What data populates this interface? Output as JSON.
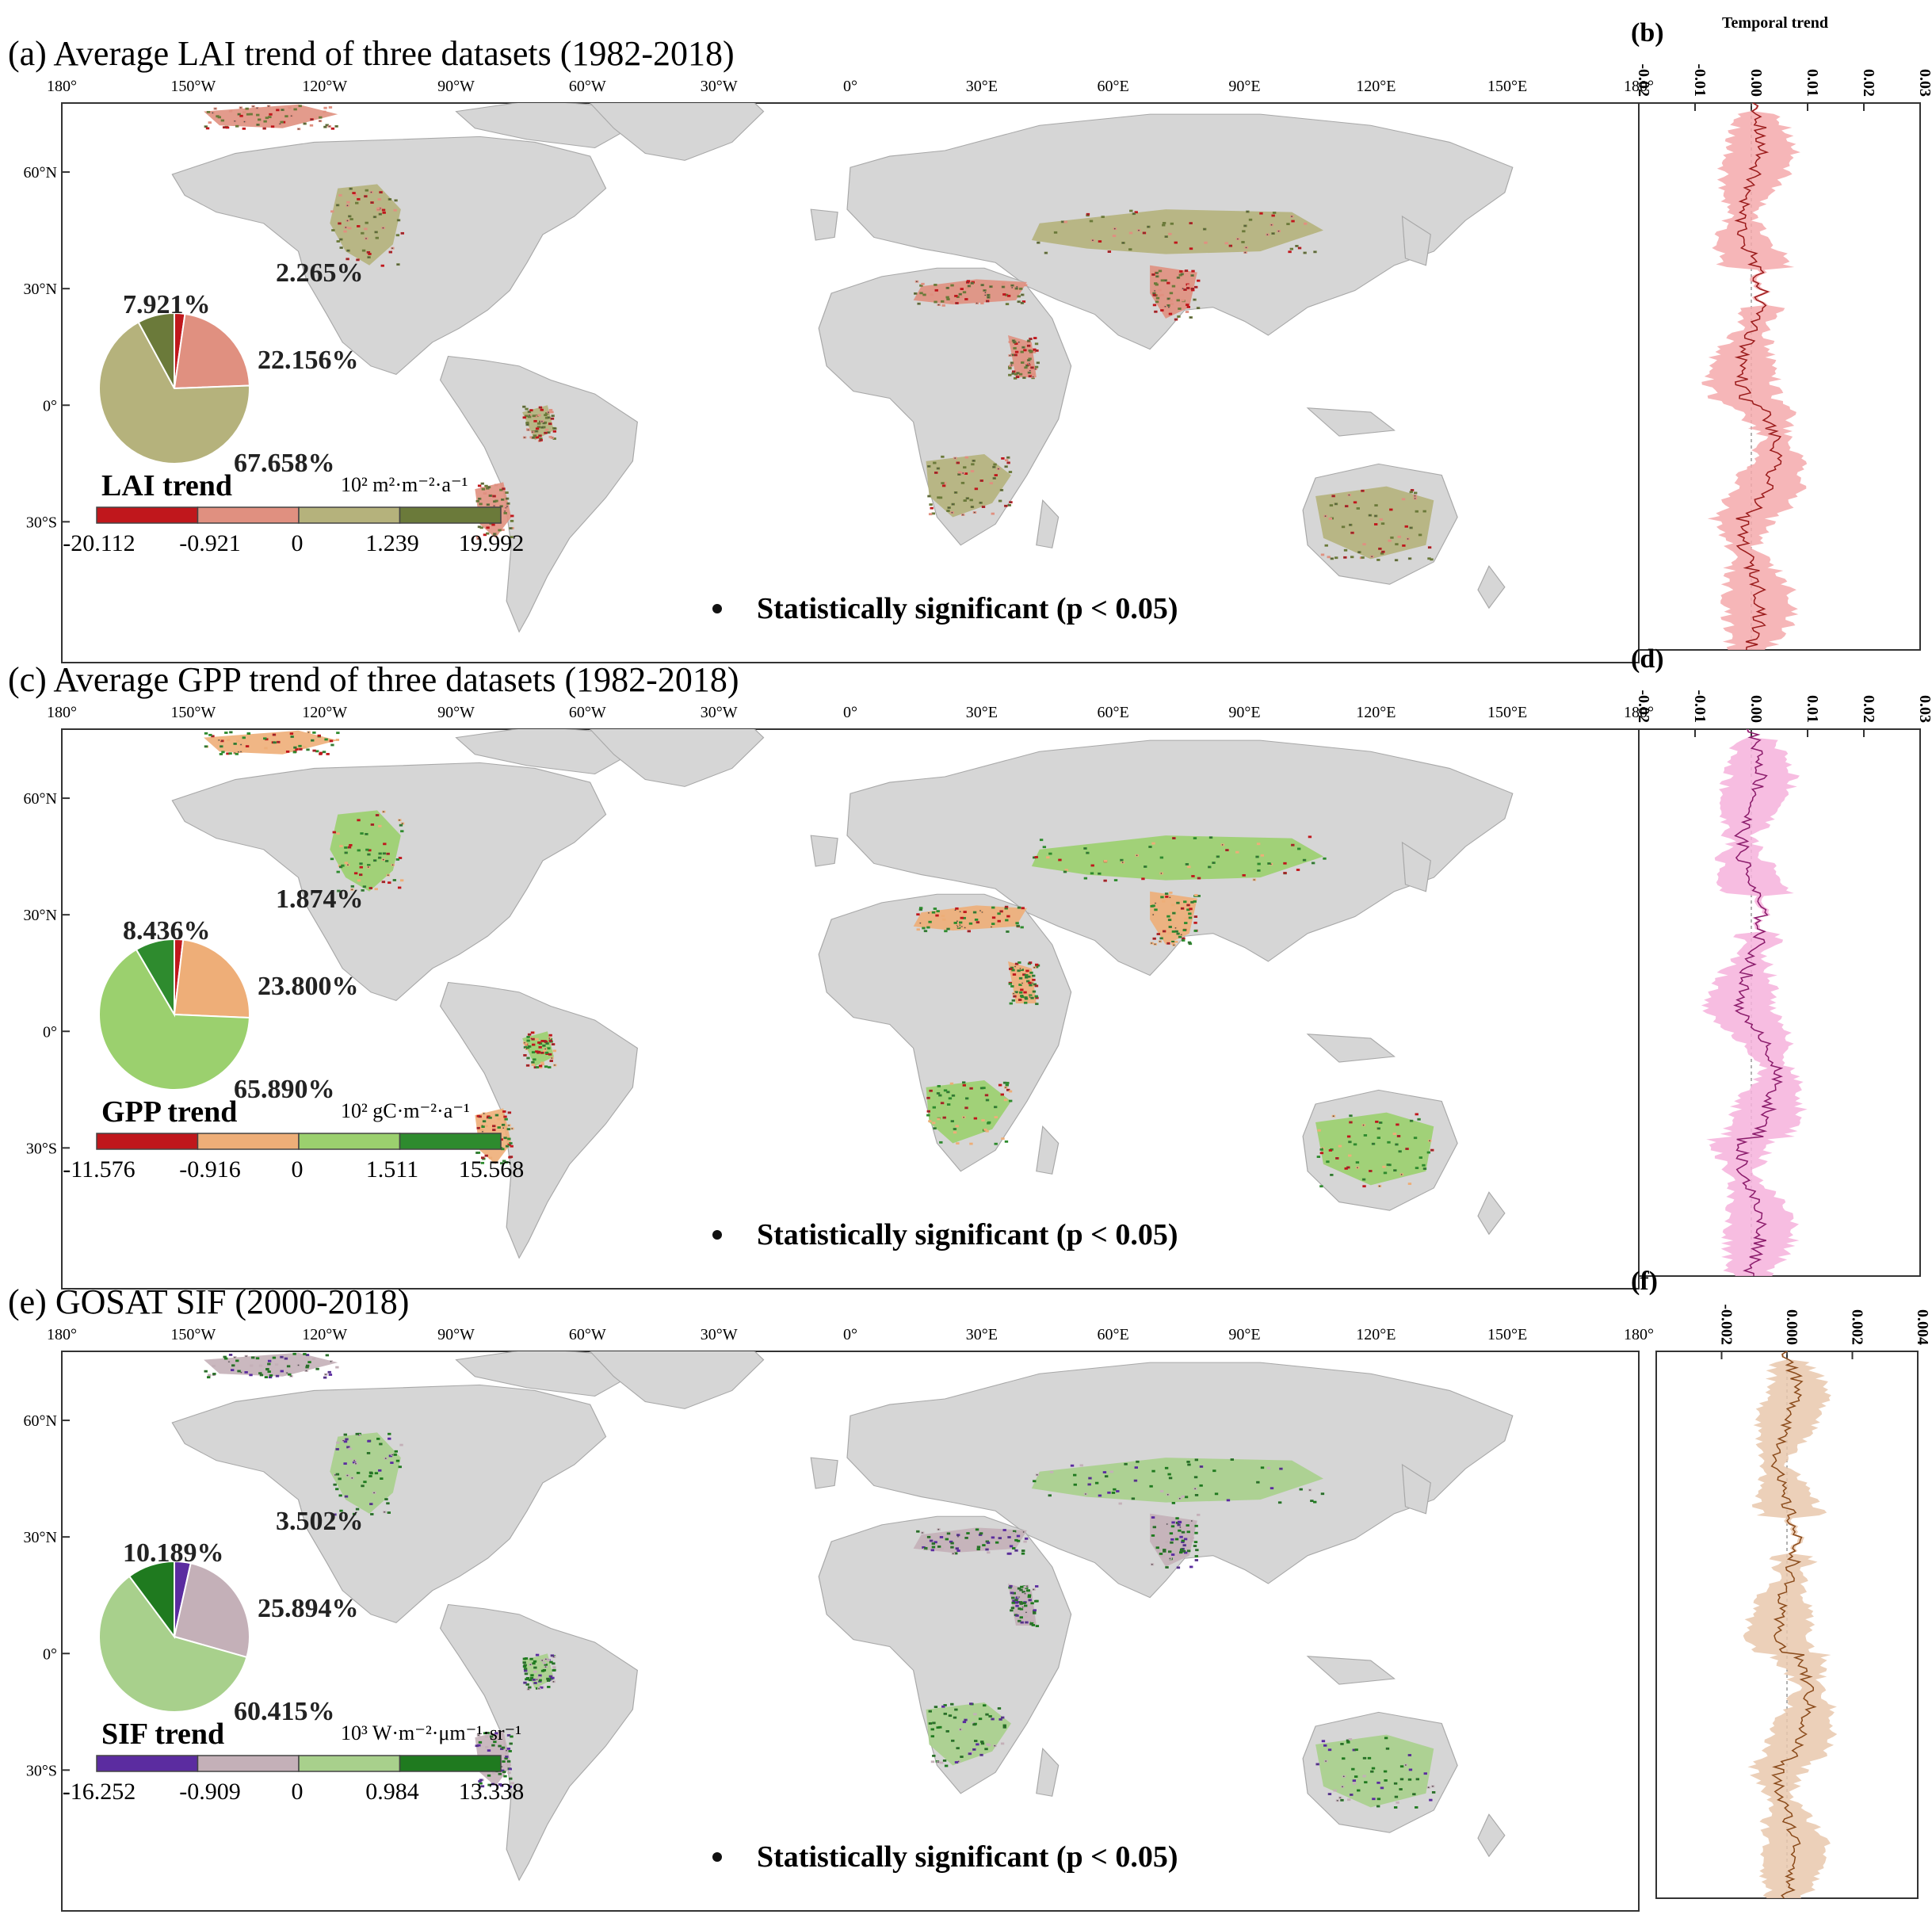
{
  "panels": [
    {
      "label": "(a)",
      "title": "(a) Average LAI trend of three datasets (1982-2018)",
      "lon_ticks": [
        "180°",
        "150°W",
        "120°W",
        "90°W",
        "60°W",
        "30°W",
        "0°",
        "30°E",
        "60°E",
        "90°E",
        "120°E",
        "150°E",
        "180°"
      ],
      "lat_ticks": [
        "60°N",
        "30°N",
        "0°",
        "30°S"
      ],
      "pie": {
        "slices": [
          {
            "label": "2.265%",
            "value": 2.265,
            "color": "#c0171c"
          },
          {
            "label": "22.156%",
            "value": 22.156,
            "color": "#e09080"
          },
          {
            "label": "67.658%",
            "value": 67.658,
            "color": "#b5b27c"
          },
          {
            "label": "7.921%",
            "value": 7.921,
            "color": "#6b7a3a"
          }
        ]
      },
      "legend": {
        "title": "LAI trend",
        "unit": "10² m²·m⁻²·a⁻¹",
        "colors": [
          "#c0171c",
          "#e09080",
          "#b5b27c",
          "#6b7a3a"
        ],
        "values": [
          "-20.112",
          "-0.921",
          "0",
          "1.239",
          "19.992"
        ]
      },
      "significance": "Statistically significant (p < 0.05)",
      "land_colors": [
        "#b5b27c",
        "#e09080",
        "#6b7a3a",
        "#c0171c"
      ]
    },
    {
      "label": "(c)",
      "title": "(c) Average GPP trend of three datasets (1982-2018)",
      "lon_ticks": [
        "180°",
        "150°W",
        "120°W",
        "90°W",
        "60°W",
        "30°W",
        "0°",
        "30°E",
        "60°E",
        "90°E",
        "120°E",
        "150°E",
        "180°"
      ],
      "lat_ticks": [
        "60°N",
        "30°N",
        "0°",
        "30°S"
      ],
      "pie": {
        "slices": [
          {
            "label": "1.874%",
            "value": 1.874,
            "color": "#c0171c"
          },
          {
            "label": "23.800%",
            "value": 23.8,
            "color": "#eeae78"
          },
          {
            "label": "65.890%",
            "value": 65.89,
            "color": "#9bd06e"
          },
          {
            "label": "8.436%",
            "value": 8.436,
            "color": "#2e8b2e"
          }
        ]
      },
      "legend": {
        "title": "GPP trend",
        "unit": "10² gC·m⁻²·a⁻¹",
        "colors": [
          "#c0171c",
          "#eeae78",
          "#9bd06e",
          "#2e8b2e"
        ],
        "values": [
          "-11.576",
          "-0.916",
          "0",
          "1.511",
          "15.568"
        ]
      },
      "significance": "Statistically significant (p < 0.05)",
      "land_colors": [
        "#9bd06e",
        "#eeae78",
        "#2e8b2e",
        "#c0171c"
      ]
    },
    {
      "label": "(e)",
      "title": "(e) GOSAT SIF (2000-2018)",
      "lon_ticks": [
        "180°",
        "150°W",
        "120°W",
        "90°W",
        "60°W",
        "30°W",
        "0°",
        "30°E",
        "60°E",
        "90°E",
        "120°E",
        "150°E",
        "180°"
      ],
      "lat_ticks": [
        "60°N",
        "30°N",
        "0°",
        "30°S"
      ],
      "pie": {
        "slices": [
          {
            "label": "3.502%",
            "value": 3.502,
            "color": "#5b2ca0"
          },
          {
            "label": "25.894%",
            "value": 25.894,
            "color": "#c4b0b8"
          },
          {
            "label": "60.415%",
            "value": 60.415,
            "color": "#a8d08c"
          },
          {
            "label": "10.189%",
            "value": 10.189,
            "color": "#1f7a1f"
          }
        ]
      },
      "legend": {
        "title": "SIF trend",
        "unit": "10³ W·m⁻²·μm⁻¹·sr⁻¹",
        "colors": [
          "#5b2ca0",
          "#c4b0b8",
          "#a8d08c",
          "#1f7a1f"
        ],
        "values": [
          "-16.252",
          "-0.909",
          "0",
          "0.984",
          "13.338"
        ]
      },
      "significance": "Statistically significant (p < 0.05)",
      "land_colors": [
        "#a8d08c",
        "#c4b0b8",
        "#1f7a1f",
        "#5b2ca0"
      ]
    }
  ],
  "timeseries": [
    {
      "label": "(b)",
      "header": "Temporal trend",
      "ticks": [
        "-0.02",
        "-0.01",
        "0.00",
        "0.01",
        "0.02",
        "0.03"
      ],
      "range": [
        -0.02,
        0.03
      ],
      "line_color": "#9a1a1a",
      "band_color": "#f4a9ac"
    },
    {
      "label": "(d)",
      "header": "",
      "ticks": [
        "-0.02",
        "-0.01",
        "0.00",
        "0.01",
        "0.02",
        "0.03"
      ],
      "range": [
        -0.02,
        0.03
      ],
      "line_color": "#8a1a6a",
      "band_color": "#f6b2dc"
    },
    {
      "label": "(f)",
      "header": "",
      "ticks": [
        "-0.002",
        "0.000",
        "0.002",
        "0.004"
      ],
      "range": [
        -0.004,
        0.004
      ],
      "line_color": "#8a4a1a",
      "band_color": "#e9c8ad"
    }
  ],
  "colors": {
    "land": "#d6d6d6",
    "ocean": "#ffffff",
    "border": "#a8a8a8"
  }
}
